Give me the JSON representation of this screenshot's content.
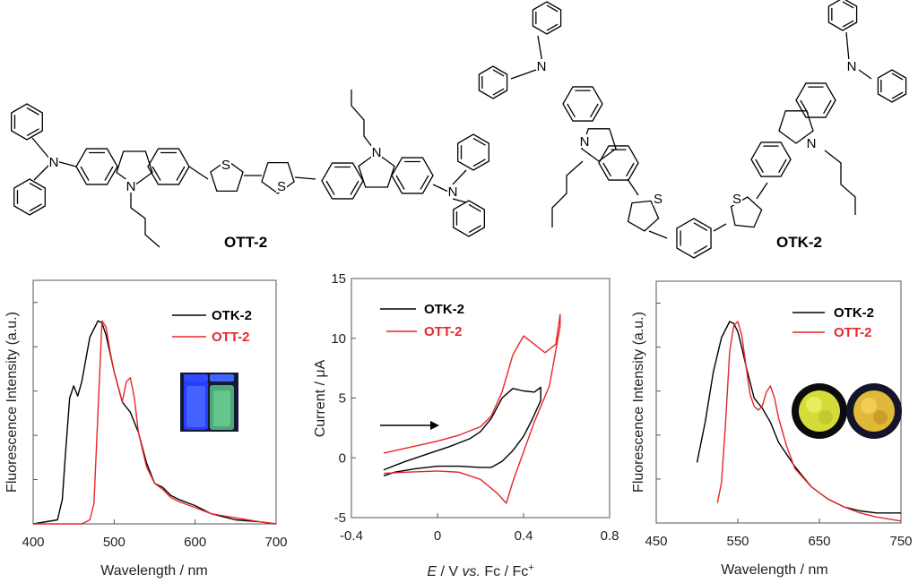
{
  "molecules": {
    "left": {
      "name": "OTT-2",
      "atoms": {
        "N": "N",
        "S": "S"
      }
    },
    "right": {
      "name": "OTK-2"
    }
  },
  "chart_data": [
    {
      "type": "line",
      "xlabel": "Wavelength / nm",
      "ylabel": "Fluorescence Intensity (a.u.)",
      "xlim": [
        400,
        700
      ],
      "xticks": [
        "400",
        "500",
        "600",
        "700"
      ],
      "legend_position": "top-right",
      "series": [
        {
          "name": "OTK-2",
          "color": "#000000",
          "x": [
            400,
            430,
            436,
            440,
            445,
            450,
            455,
            460,
            470,
            480,
            485,
            490,
            500,
            510,
            520,
            530,
            540,
            550,
            560,
            570,
            580,
            600,
            620,
            650,
            680,
            700
          ],
          "y": [
            0,
            0.02,
            0.12,
            0.35,
            0.62,
            0.68,
            0.63,
            0.7,
            0.92,
            1.0,
            0.99,
            0.93,
            0.75,
            0.6,
            0.55,
            0.45,
            0.3,
            0.2,
            0.18,
            0.14,
            0.12,
            0.09,
            0.05,
            0.02,
            0.01,
            0
          ]
        },
        {
          "name": "OTT-2",
          "color": "#e8262a",
          "x": [
            400,
            460,
            470,
            475,
            480,
            485,
            490,
            495,
            500,
            510,
            515,
            520,
            525,
            530,
            540,
            550,
            560,
            570,
            580,
            600,
            620,
            650,
            680,
            700
          ],
          "y": [
            0,
            0,
            0.02,
            0.1,
            0.55,
            1.0,
            0.97,
            0.85,
            0.75,
            0.6,
            0.7,
            0.72,
            0.62,
            0.45,
            0.28,
            0.2,
            0.17,
            0.13,
            0.11,
            0.08,
            0.05,
            0.03,
            0.01,
            0
          ]
        }
      ]
    },
    {
      "type": "line",
      "xlabel_italic": "E",
      "xlabel_rest": " / V ",
      "xlabel_vs": "vs.",
      "xlabel_tail": " Fc / Fc",
      "xlabel_sup": "+",
      "ylabel": "Current / μA",
      "xlim": [
        -0.4,
        0.8
      ],
      "ylim": [
        -5,
        15
      ],
      "xticks": [
        "-0.4",
        "0",
        "0.4",
        "0.8"
      ],
      "yticks": [
        "-5",
        "0",
        "5",
        "10",
        "15"
      ],
      "legend_position": "top-left",
      "annotation": "arrow pointing right (scan direction)",
      "series": [
        {
          "name": "OTK-2",
          "color": "#000000",
          "x": [
            -0.25,
            -0.15,
            -0.05,
            0.05,
            0.15,
            0.2,
            0.25,
            0.3,
            0.35,
            0.4,
            0.45,
            0.48,
            0.48,
            0.44,
            0.4,
            0.35,
            0.3,
            0.25,
            0.2,
            0.1,
            0.0,
            -0.1,
            -0.2,
            -0.25
          ],
          "y": [
            -1.0,
            -0.3,
            0.3,
            0.9,
            1.6,
            2.2,
            3.3,
            5.0,
            5.8,
            5.6,
            5.5,
            5.9,
            4.8,
            3.2,
            1.8,
            0.6,
            -0.3,
            -0.8,
            -0.8,
            -0.7,
            -0.7,
            -0.9,
            -1.2,
            -1.5
          ]
        },
        {
          "name": "OTT-2",
          "color": "#e8262a",
          "x": [
            -0.25,
            -0.1,
            0.0,
            0.1,
            0.2,
            0.25,
            0.3,
            0.35,
            0.4,
            0.45,
            0.5,
            0.55,
            0.57,
            0.57,
            0.52,
            0.45,
            0.4,
            0.35,
            0.32,
            0.28,
            0.2,
            0.1,
            0.0,
            -0.15,
            -0.25
          ],
          "y": [
            0.4,
            1.0,
            1.4,
            1.9,
            2.6,
            3.5,
            5.5,
            8.6,
            10.2,
            9.5,
            8.8,
            9.5,
            12.0,
            11.0,
            6.0,
            3.0,
            0.5,
            -2.0,
            -3.8,
            -3.0,
            -1.8,
            -1.2,
            -1.1,
            -1.2,
            -1.3
          ]
        }
      ]
    },
    {
      "type": "line",
      "xlabel": "Wavelength / nm",
      "ylabel": "Fluorescence Intensity (a.u.)",
      "xlim": [
        450,
        750
      ],
      "xticks": [
        "450",
        "550",
        "650",
        "750"
      ],
      "legend_position": "top-right",
      "series": [
        {
          "name": "OTK-2",
          "color": "#000000",
          "x": [
            500,
            510,
            520,
            530,
            540,
            545,
            550,
            555,
            560,
            570,
            580,
            590,
            600,
            620,
            640,
            660,
            680,
            700,
            720,
            750
          ],
          "y": [
            0.3,
            0.5,
            0.75,
            0.92,
            1.0,
            0.99,
            0.95,
            0.87,
            0.78,
            0.62,
            0.57,
            0.5,
            0.4,
            0.28,
            0.18,
            0.12,
            0.08,
            0.06,
            0.05,
            0.05
          ]
        },
        {
          "name": "OTT-2",
          "color": "#e8262a",
          "x": [
            525,
            530,
            535,
            540,
            545,
            550,
            555,
            560,
            565,
            570,
            575,
            580,
            585,
            590,
            595,
            600,
            610,
            620,
            640,
            660,
            680,
            700,
            720,
            750
          ],
          "y": [
            0.1,
            0.2,
            0.5,
            0.85,
            0.98,
            1.0,
            0.93,
            0.78,
            0.64,
            0.58,
            0.56,
            0.58,
            0.65,
            0.68,
            0.62,
            0.52,
            0.38,
            0.27,
            0.18,
            0.12,
            0.08,
            0.05,
            0.03,
            0.01
          ]
        }
      ]
    }
  ]
}
